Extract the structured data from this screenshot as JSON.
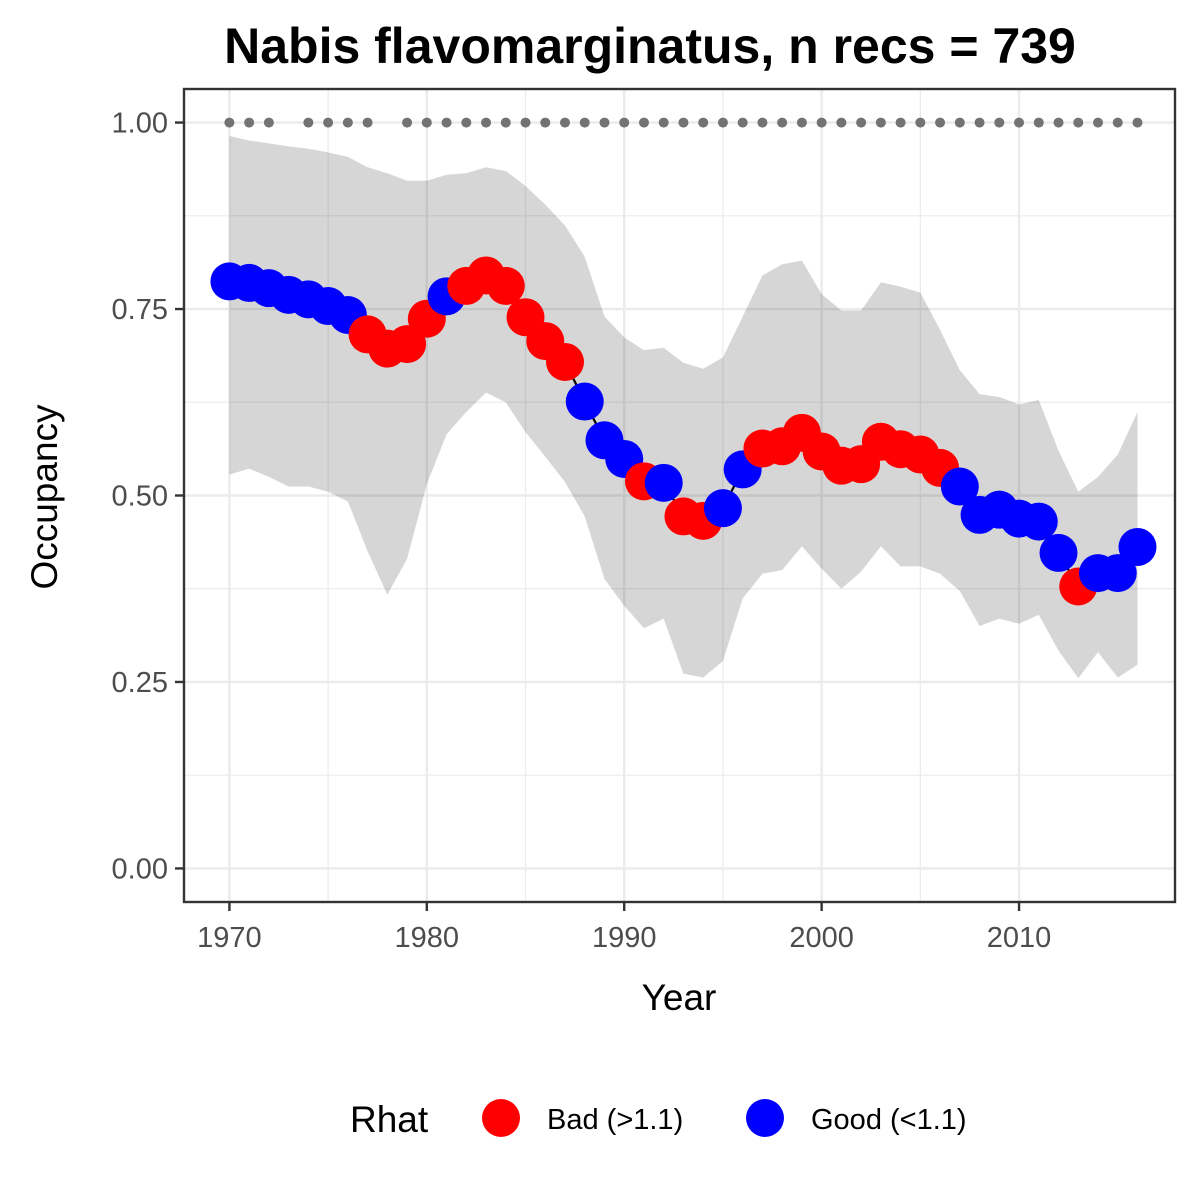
{
  "chart_data": {
    "type": "line",
    "title": "Nabis flavomarginatus, n recs = 739",
    "xlabel": "Year",
    "ylabel": "Occupancy",
    "xlim": [
      1967.7,
      2017.9
    ],
    "ylim": [
      -0.045,
      1.045
    ],
    "x_ticks": [
      1970,
      1980,
      1990,
      2000,
      2010
    ],
    "x_tick_labels": [
      "1970",
      "1980",
      "1990",
      "2000",
      "2010"
    ],
    "y_ticks": [
      0,
      0.25,
      0.5,
      0.75,
      1.0
    ],
    "y_tick_labels": [
      "0.00",
      "0.25",
      "0.50",
      "0.75",
      "1.00"
    ],
    "grid": true,
    "legend": {
      "title": "Rhat",
      "position": "bottom",
      "entries": [
        {
          "key": "bad",
          "label": "Bad (>1.1)",
          "color": "#ff0000"
        },
        {
          "key": "good",
          "label": "Good (<1.1)",
          "color": "#0000ff"
        }
      ]
    },
    "years": [
      1970,
      1971,
      1972,
      1973,
      1974,
      1975,
      1976,
      1977,
      1978,
      1979,
      1980,
      1981,
      1982,
      1983,
      1984,
      1985,
      1986,
      1987,
      1988,
      1989,
      1990,
      1991,
      1992,
      1993,
      1994,
      1995,
      1996,
      1997,
      1998,
      1999,
      2000,
      2001,
      2002,
      2003,
      2004,
      2005,
      2006,
      2007,
      2008,
      2009,
      2010,
      2011,
      2012,
      2013,
      2014,
      2015,
      2016
    ],
    "occupancy": [
      0.787,
      0.785,
      0.778,
      0.769,
      0.763,
      0.754,
      0.742,
      0.716,
      0.697,
      0.703,
      0.737,
      0.767,
      0.781,
      0.795,
      0.781,
      0.739,
      0.707,
      0.679,
      0.626,
      0.574,
      0.549,
      0.519,
      0.517,
      0.472,
      0.466,
      0.483,
      0.535,
      0.563,
      0.566,
      0.584,
      0.559,
      0.54,
      0.542,
      0.572,
      0.562,
      0.555,
      0.537,
      0.512,
      0.474,
      0.481,
      0.469,
      0.465,
      0.423,
      0.378,
      0.396,
      0.396,
      0.431
    ],
    "rhat": [
      "good",
      "good",
      "good",
      "good",
      "good",
      "good",
      "good",
      "bad",
      "bad",
      "bad",
      "bad",
      "good",
      "bad",
      "bad",
      "bad",
      "bad",
      "bad",
      "bad",
      "good",
      "good",
      "good",
      "bad",
      "good",
      "bad",
      "bad",
      "good",
      "good",
      "bad",
      "bad",
      "bad",
      "bad",
      "bad",
      "bad",
      "bad",
      "bad",
      "bad",
      "bad",
      "good",
      "good",
      "good",
      "good",
      "good",
      "good",
      "bad",
      "good",
      "good",
      "good"
    ],
    "ci_upper": [
      0.982,
      0.976,
      0.972,
      0.968,
      0.965,
      0.96,
      0.954,
      0.94,
      0.932,
      0.922,
      0.922,
      0.93,
      0.932,
      0.94,
      0.935,
      0.915,
      0.89,
      0.862,
      0.82,
      0.74,
      0.712,
      0.695,
      0.698,
      0.678,
      0.67,
      0.685,
      0.74,
      0.795,
      0.81,
      0.815,
      0.77,
      0.748,
      0.748,
      0.786,
      0.78,
      0.772,
      0.722,
      0.668,
      0.636,
      0.632,
      0.622,
      0.628,
      0.56,
      0.505,
      0.525,
      0.555,
      0.612
    ],
    "ci_lower": [
      0.528,
      0.536,
      0.525,
      0.512,
      0.512,
      0.505,
      0.492,
      0.425,
      0.367,
      0.415,
      0.515,
      0.582,
      0.612,
      0.638,
      0.625,
      0.585,
      0.552,
      0.518,
      0.472,
      0.388,
      0.352,
      0.322,
      0.335,
      0.261,
      0.256,
      0.278,
      0.362,
      0.395,
      0.4,
      0.432,
      0.402,
      0.375,
      0.398,
      0.432,
      0.405,
      0.405,
      0.395,
      0.372,
      0.325,
      0.335,
      0.328,
      0.34,
      0.292,
      0.255,
      0.29,
      0.256,
      0.273
    ],
    "detection_years": [
      1970,
      1971,
      1972,
      1974,
      1975,
      1976,
      1977,
      1979,
      1980,
      1981,
      1982,
      1983,
      1984,
      1985,
      1986,
      1987,
      1988,
      1989,
      1990,
      1991,
      1992,
      1993,
      1994,
      1995,
      1996,
      1997,
      1998,
      1999,
      2000,
      2001,
      2002,
      2003,
      2004,
      2005,
      2006,
      2007,
      2008,
      2009,
      2010,
      2011,
      2012,
      2013,
      2014,
      2015,
      2016
    ],
    "detection_value": 1.0
  }
}
